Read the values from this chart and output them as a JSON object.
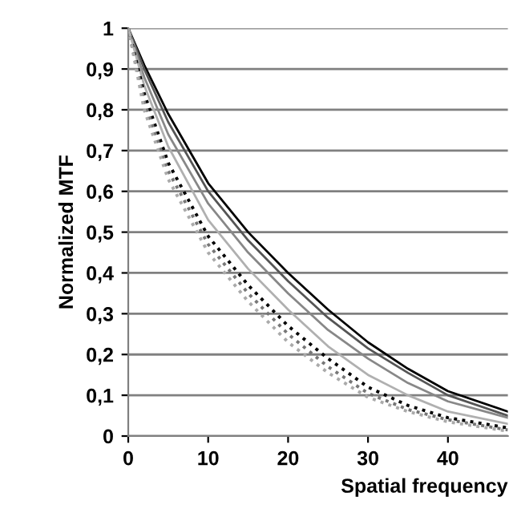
{
  "chart_data": {
    "type": "line",
    "xlabel": "Spatial frequency",
    "ylabel": "Normalized MTF",
    "x": [
      0,
      2,
      5,
      10,
      15,
      20,
      25,
      30,
      35,
      40,
      47.5
    ],
    "series": [
      {
        "color": "#000000",
        "line_style": "solid",
        "values": [
          1,
          0.91,
          0.79,
          0.62,
          0.5,
          0.4,
          0.31,
          0.23,
          0.165,
          0.11,
          0.06
        ]
      },
      {
        "color": "#555555",
        "line_style": "solid",
        "values": [
          1,
          0.9,
          0.77,
          0.6,
          0.48,
          0.38,
          0.29,
          0.215,
          0.155,
          0.1,
          0.05
        ]
      },
      {
        "color": "#888888",
        "line_style": "solid",
        "values": [
          1,
          0.88,
          0.74,
          0.57,
          0.45,
          0.35,
          0.26,
          0.19,
          0.13,
          0.085,
          0.045
        ]
      },
      {
        "color": "#b0b0b0",
        "line_style": "solid",
        "values": [
          1,
          0.86,
          0.71,
          0.53,
          0.41,
          0.31,
          0.22,
          0.15,
          0.1,
          0.06,
          0.03
        ]
      },
      {
        "color": "#000000",
        "line_style": "dotted",
        "values": [
          1,
          0.84,
          0.67,
          0.49,
          0.37,
          0.27,
          0.19,
          0.12,
          0.075,
          0.045,
          0.02
        ]
      },
      {
        "color": "#777777",
        "line_style": "dotted",
        "values": [
          1,
          0.82,
          0.65,
          0.47,
          0.35,
          0.25,
          0.17,
          0.105,
          0.065,
          0.04,
          0.015
        ]
      },
      {
        "color": "#aaaaaa",
        "line_style": "dotted",
        "values": [
          1,
          0.8,
          0.63,
          0.45,
          0.33,
          0.23,
          0.155,
          0.095,
          0.06,
          0.035,
          0.012
        ]
      }
    ],
    "xlim": [
      0,
      47.5
    ],
    "xticks": [
      0,
      10,
      20,
      30,
      40
    ],
    "ylim": [
      0,
      1
    ],
    "yticks": [
      0,
      {
        "value": 0.1,
        "label": "0,1"
      },
      {
        "value": 0.2,
        "label": "0,2"
      },
      {
        "value": 0.3,
        "label": "0,3"
      },
      {
        "value": 0.4,
        "label": "0,4"
      },
      {
        "value": 0.5,
        "label": "0,5"
      },
      {
        "value": 0.6,
        "label": "0,6"
      },
      {
        "value": 0.7,
        "label": "0,7"
      },
      {
        "value": 0.8,
        "label": "0,8"
      },
      {
        "value": 0.9,
        "label": "0,9"
      },
      1
    ],
    "grid": "y",
    "legend": false,
    "marker": "none"
  }
}
